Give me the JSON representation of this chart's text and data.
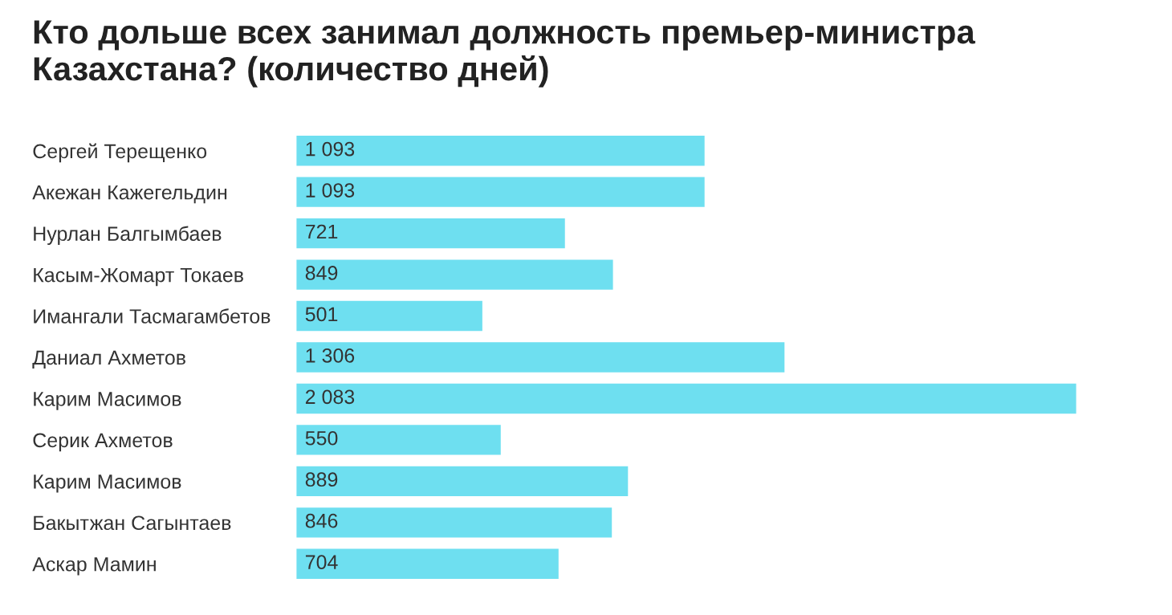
{
  "chart_data": {
    "type": "bar",
    "orientation": "horizontal",
    "title": "Кто дольше всех занимал должность премьер-министра Казахстана? (количество дней)",
    "categories": [
      "Сергей Терещенко",
      "Акежан Кажегельдин",
      "Нурлан Балгымбаев",
      "Касым-Жомарт Токаев",
      "Имангали Тасмагамбетов",
      "Даниал Ахметов",
      "Карим Масимов",
      "Серик Ахметов",
      "Карим Масимов",
      "Бакытжан Сагынтаев",
      "Аскар Мамин"
    ],
    "values": [
      1093,
      1093,
      721,
      849,
      501,
      1306,
      2083,
      550,
      889,
      846,
      704
    ],
    "value_labels": [
      "1 093",
      "1 093",
      "721",
      "849",
      "501",
      "1 306",
      "2 083",
      "550",
      "889",
      "846",
      "704"
    ],
    "color": "#6edff0",
    "grid": false,
    "legend": false
  }
}
